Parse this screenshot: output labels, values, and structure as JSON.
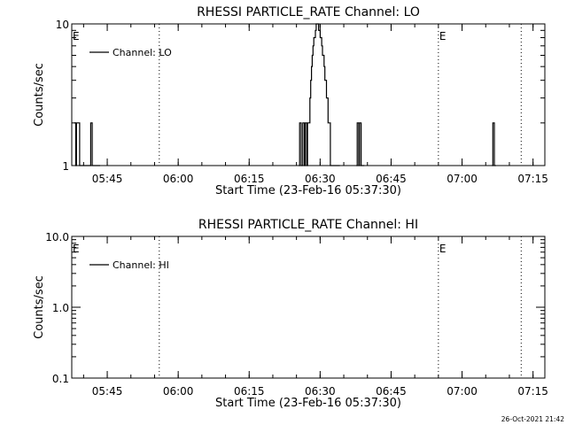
{
  "footer": {
    "timestamp": "26-Oct-2021 21:42"
  },
  "chart_data": [
    {
      "type": "line",
      "title": "RHESSI PARTICLE_RATE Channel: LO",
      "xlabel": "Start Time (23-Feb-16 05:37:30)",
      "ylabel": "Counts/sec",
      "yscale": "log",
      "ylim": [
        1,
        10
      ],
      "yticks": [
        1,
        10
      ],
      "ytick_labels": [
        "1",
        "10"
      ],
      "xlim": [
        "05:37:30",
        "07:17:30"
      ],
      "xticks": [
        "05:45",
        "06:00",
        "06:15",
        "06:30",
        "06:45",
        "07:00",
        "07:15"
      ],
      "legend": "top-left",
      "series": [
        {
          "name": "Channel: LO",
          "x": [
            "05:38:00",
            "05:38:10",
            "05:38:20",
            "05:38:30",
            "05:38:40",
            "05:38:50",
            "05:39:00",
            "05:39:10",
            "05:39:20",
            "05:39:30",
            "05:39:40",
            "05:39:50",
            "05:40:00",
            "05:40:10",
            "05:40:20",
            "05:40:30",
            "05:40:40",
            "05:40:50",
            "05:41:00",
            "05:41:10",
            "05:41:20",
            "05:41:30",
            "05:41:40",
            "05:41:50",
            "05:42:00",
            "05:42:10",
            "05:42:20",
            "05:42:30",
            "05:42:40",
            "05:42:50",
            "05:43:00",
            "05:43:10",
            "05:43:20",
            "06:25:30",
            "06:25:40",
            "06:25:50",
            "06:26:00",
            "06:26:10",
            "06:26:20",
            "06:26:30",
            "06:26:40",
            "06:26:50",
            "06:27:00",
            "06:27:10",
            "06:27:20",
            "06:27:30",
            "06:27:40",
            "06:27:50",
            "06:28:00",
            "06:28:10",
            "06:28:20",
            "06:28:30",
            "06:28:40",
            "06:28:50",
            "06:29:00",
            "06:29:10",
            "06:29:20",
            "06:29:30",
            "06:29:40",
            "06:29:50",
            "06:30:00",
            "06:30:10",
            "06:30:20",
            "06:30:30",
            "06:30:40",
            "06:30:50",
            "06:31:00",
            "06:31:10",
            "06:31:20",
            "06:31:30",
            "06:31:40",
            "06:31:50",
            "06:32:00",
            "06:32:10",
            "06:32:20",
            "06:32:30",
            "06:32:40",
            "06:32:50",
            "06:33:00",
            "06:33:10",
            "06:33:20",
            "06:33:30",
            "06:33:40",
            "06:33:50",
            "06:34:00",
            "06:37:40",
            "06:37:50",
            "06:38:00",
            "06:38:10",
            "06:38:20",
            "06:38:30",
            "06:38:40",
            "06:38:50",
            "06:39:00",
            "06:39:10",
            "07:06:20",
            "07:06:30",
            "07:06:40",
            "07:06:50",
            "07:07:00"
          ],
          "values": [
            2,
            2,
            1,
            2,
            2,
            2,
            2,
            1,
            1,
            1,
            1,
            1,
            1,
            1,
            1,
            1,
            1,
            1,
            1,
            1,
            1,
            2,
            2,
            1,
            1,
            1,
            1,
            1,
            1,
            1,
            1,
            1,
            1,
            1,
            2,
            2,
            1,
            1,
            2,
            2,
            1,
            2,
            2,
            1,
            2,
            2,
            2,
            3,
            4,
            5,
            6,
            7,
            8,
            8,
            9,
            10,
            10,
            10,
            9,
            9,
            8,
            8,
            7,
            6,
            6,
            5,
            4,
            4,
            3,
            3,
            2,
            2,
            2,
            1,
            1,
            1,
            1,
            1,
            1,
            1,
            1,
            1,
            1,
            1,
            1,
            1,
            2,
            2,
            1,
            2,
            2,
            1,
            1,
            1,
            1,
            1,
            2,
            2,
            1,
            1
          ]
        }
      ],
      "flag_label": "E",
      "flag_times": [
        "05:37:30",
        "06:55:00"
      ],
      "dotted_marker_times": [
        "05:56:00",
        "06:55:00",
        "07:12:30"
      ]
    },
    {
      "type": "line",
      "title": "RHESSI PARTICLE_RATE Channel: HI",
      "xlabel": "Start Time (23-Feb-16 05:37:30)",
      "ylabel": "Counts/sec",
      "yscale": "log",
      "ylim": [
        0.1,
        10
      ],
      "yticks": [
        0.1,
        1,
        10
      ],
      "ytick_labels": [
        "0.1",
        "1.0",
        "10.0"
      ],
      "xlim": [
        "05:37:30",
        "07:17:30"
      ],
      "xticks": [
        "05:45",
        "06:00",
        "06:15",
        "06:30",
        "06:45",
        "07:00",
        "07:15"
      ],
      "legend": "top-left",
      "series": [
        {
          "name": "Channel: HI",
          "x": [],
          "values": []
        }
      ],
      "flag_label": "E",
      "flag_times": [
        "05:37:30",
        "06:55:00"
      ],
      "dotted_marker_times": [
        "05:56:00",
        "06:55:00",
        "07:12:30"
      ]
    }
  ]
}
